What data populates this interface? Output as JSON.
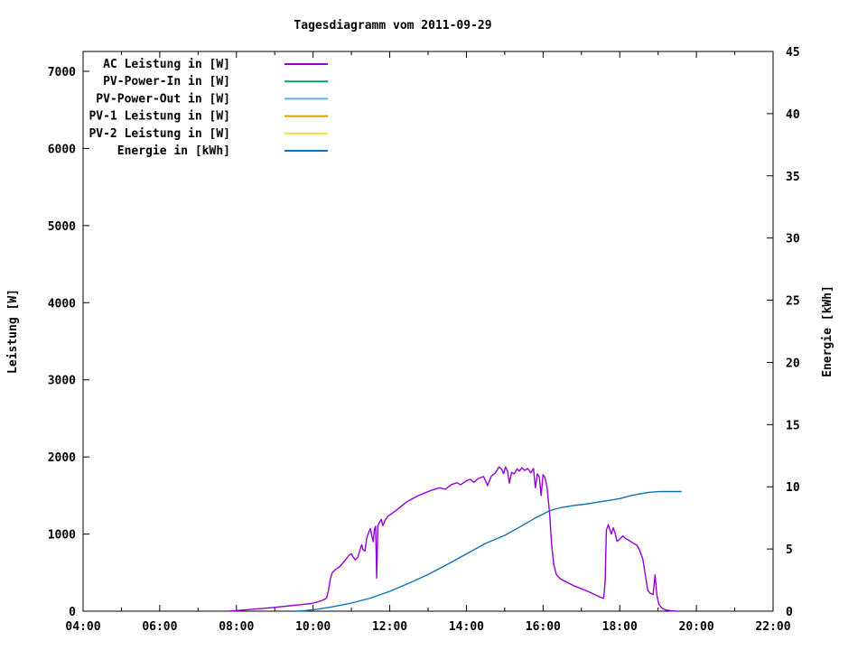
{
  "chart_data": {
    "type": "line",
    "title": "Tagesdiagramm vom 2011-09-29",
    "background": "#ffffff",
    "text_color": "#000000",
    "grid": false,
    "legend_position": "top-left-inside",
    "x_axis": {
      "label": "",
      "range_hours": [
        4,
        22
      ],
      "major_tick_labels": [
        "04:00",
        "06:00",
        "08:00",
        "10:00",
        "12:00",
        "14:00",
        "16:00",
        "18:00",
        "20:00",
        "22:00"
      ],
      "major_tick_hours": [
        4,
        6,
        8,
        10,
        12,
        14,
        16,
        18,
        20,
        22
      ],
      "minor_tick_hours": [
        5,
        7,
        9,
        11,
        13,
        15,
        17,
        19,
        21
      ]
    },
    "y_left": {
      "label": "Leistung [W]",
      "tick_values": [
        0,
        1000,
        2000,
        3000,
        4000,
        5000,
        6000,
        7000
      ],
      "tick_labels": [
        "0",
        "1000",
        "2000",
        "3000",
        "4000",
        "5000",
        "6000",
        "7000"
      ],
      "units_per_px": "1000 W per 85.4 px",
      "range_shown": [
        0,
        7260
      ]
    },
    "y_right": {
      "label": "Energie [kWh]",
      "tick_values": [
        0,
        5,
        10,
        15,
        20,
        25,
        30,
        35,
        40,
        45
      ],
      "tick_labels": [
        "0",
        "5",
        "10",
        "15",
        "20",
        "25",
        "30",
        "35",
        "40",
        "45"
      ],
      "range_shown": [
        0,
        45
      ]
    },
    "legend": [
      {
        "label": "AC Leistung in [W]",
        "color": "#9400d3",
        "series": "ac-leistung"
      },
      {
        "label": "PV-Power-In in [W]",
        "color": "#009e73",
        "series": "pv-power-in"
      },
      {
        "label": "PV-Power-Out in [W]",
        "color": "#56b4e9",
        "series": "pv-power-out"
      },
      {
        "label": "PV-1 Leistung in [W]",
        "color": "#d8a000",
        "series": "pv-1-leistung"
      },
      {
        "label": "PV-2 Leistung in [W]",
        "color": "#f0e442",
        "series": "pv-2-leistung"
      },
      {
        "label": "Energie in [kWh]",
        "color": "#0e72b5",
        "series": "energie"
      }
    ],
    "series": [
      {
        "slug": "ac-leistung",
        "name": "AC Leistung in [W]",
        "axis": "left",
        "color": "#9400d3",
        "points": [
          [
            7.78,
            0
          ],
          [
            8.0,
            8
          ],
          [
            8.2,
            15
          ],
          [
            8.5,
            28
          ],
          [
            8.8,
            40
          ],
          [
            9.1,
            55
          ],
          [
            9.4,
            70
          ],
          [
            9.7,
            85
          ],
          [
            9.95,
            100
          ],
          [
            10.1,
            118
          ],
          [
            10.25,
            142
          ],
          [
            10.35,
            168
          ],
          [
            10.4,
            260
          ],
          [
            10.45,
            420
          ],
          [
            10.5,
            500
          ],
          [
            10.6,
            545
          ],
          [
            10.7,
            580
          ],
          [
            10.8,
            640
          ],
          [
            10.9,
            700
          ],
          [
            10.95,
            730
          ],
          [
            11.0,
            745
          ],
          [
            11.05,
            700
          ],
          [
            11.1,
            665
          ],
          [
            11.17,
            700
          ],
          [
            11.22,
            790
          ],
          [
            11.27,
            860
          ],
          [
            11.3,
            800
          ],
          [
            11.35,
            780
          ],
          [
            11.4,
            950
          ],
          [
            11.45,
            1020
          ],
          [
            11.5,
            1070
          ],
          [
            11.53,
            980
          ],
          [
            11.57,
            900
          ],
          [
            11.6,
            1060
          ],
          [
            11.63,
            1100
          ],
          [
            11.66,
            430
          ],
          [
            11.69,
            1110
          ],
          [
            11.73,
            1150
          ],
          [
            11.78,
            1190
          ],
          [
            11.82,
            1110
          ],
          [
            11.87,
            1170
          ],
          [
            11.95,
            1230
          ],
          [
            12.05,
            1265
          ],
          [
            12.15,
            1300
          ],
          [
            12.3,
            1360
          ],
          [
            12.45,
            1420
          ],
          [
            12.6,
            1460
          ],
          [
            12.75,
            1500
          ],
          [
            12.9,
            1530
          ],
          [
            13.1,
            1570
          ],
          [
            13.3,
            1600
          ],
          [
            13.45,
            1580
          ],
          [
            13.6,
            1640
          ],
          [
            13.75,
            1665
          ],
          [
            13.85,
            1640
          ],
          [
            14.0,
            1690
          ],
          [
            14.1,
            1710
          ],
          [
            14.2,
            1670
          ],
          [
            14.3,
            1720
          ],
          [
            14.45,
            1745
          ],
          [
            14.55,
            1630
          ],
          [
            14.65,
            1750
          ],
          [
            14.75,
            1790
          ],
          [
            14.85,
            1870
          ],
          [
            14.92,
            1840
          ],
          [
            14.97,
            1780
          ],
          [
            15.02,
            1870
          ],
          [
            15.07,
            1820
          ],
          [
            15.12,
            1660
          ],
          [
            15.18,
            1800
          ],
          [
            15.25,
            1780
          ],
          [
            15.32,
            1845
          ],
          [
            15.38,
            1815
          ],
          [
            15.45,
            1860
          ],
          [
            15.52,
            1825
          ],
          [
            15.6,
            1850
          ],
          [
            15.68,
            1795
          ],
          [
            15.75,
            1850
          ],
          [
            15.8,
            1600
          ],
          [
            15.85,
            1780
          ],
          [
            15.9,
            1745
          ],
          [
            15.95,
            1500
          ],
          [
            16.0,
            1770
          ],
          [
            16.05,
            1730
          ],
          [
            16.1,
            1620
          ],
          [
            16.17,
            1280
          ],
          [
            16.22,
            880
          ],
          [
            16.28,
            600
          ],
          [
            16.35,
            470
          ],
          [
            16.45,
            420
          ],
          [
            16.6,
            380
          ],
          [
            16.8,
            330
          ],
          [
            17.0,
            290
          ],
          [
            17.2,
            250
          ],
          [
            17.35,
            215
          ],
          [
            17.5,
            180
          ],
          [
            17.58,
            165
          ],
          [
            17.62,
            400
          ],
          [
            17.65,
            1050
          ],
          [
            17.7,
            1120
          ],
          [
            17.74,
            1060
          ],
          [
            17.78,
            1000
          ],
          [
            17.83,
            1080
          ],
          [
            17.88,
            1010
          ],
          [
            17.93,
            905
          ],
          [
            18.0,
            935
          ],
          [
            18.08,
            975
          ],
          [
            18.15,
            945
          ],
          [
            18.25,
            915
          ],
          [
            18.35,
            880
          ],
          [
            18.45,
            855
          ],
          [
            18.52,
            790
          ],
          [
            18.6,
            680
          ],
          [
            18.68,
            430
          ],
          [
            18.73,
            270
          ],
          [
            18.8,
            230
          ],
          [
            18.87,
            215
          ],
          [
            18.92,
            470
          ],
          [
            18.97,
            200
          ],
          [
            19.02,
            90
          ],
          [
            19.1,
            40
          ],
          [
            19.2,
            15
          ],
          [
            19.35,
            5
          ],
          [
            19.5,
            0
          ]
        ]
      },
      {
        "slug": "pv-power-in",
        "name": "PV-Power-In in [W]",
        "axis": "left",
        "color": "#009e73",
        "points": []
      },
      {
        "slug": "pv-power-out",
        "name": "PV-Power-Out in [W]",
        "axis": "left",
        "color": "#56b4e9",
        "points": []
      },
      {
        "slug": "pv-1-leistung",
        "name": "PV-1 Leistung in [W]",
        "axis": "left",
        "color": "#d8a000",
        "points": []
      },
      {
        "slug": "pv-2-leistung",
        "name": "PV-2 Leistung in [W]",
        "axis": "left",
        "color": "#f0e442",
        "points": []
      },
      {
        "slug": "energie",
        "name": "Energie in [kWh]",
        "axis": "right",
        "color": "#0e72b5",
        "points": [
          [
            9.55,
            0
          ],
          [
            9.8,
            0.05
          ],
          [
            10.1,
            0.15
          ],
          [
            10.5,
            0.35
          ],
          [
            11.0,
            0.65
          ],
          [
            11.5,
            1.05
          ],
          [
            12.0,
            1.6
          ],
          [
            12.5,
            2.25
          ],
          [
            13.0,
            2.95
          ],
          [
            13.5,
            3.75
          ],
          [
            14.0,
            4.6
          ],
          [
            14.5,
            5.45
          ],
          [
            15.0,
            6.1
          ],
          [
            15.5,
            6.95
          ],
          [
            15.8,
            7.5
          ],
          [
            16.0,
            7.8
          ],
          [
            16.15,
            8.05
          ],
          [
            16.3,
            8.2
          ],
          [
            16.5,
            8.35
          ],
          [
            16.8,
            8.5
          ],
          [
            17.1,
            8.6
          ],
          [
            17.4,
            8.75
          ],
          [
            17.7,
            8.9
          ],
          [
            18.0,
            9.05
          ],
          [
            18.3,
            9.3
          ],
          [
            18.55,
            9.45
          ],
          [
            18.75,
            9.55
          ],
          [
            18.95,
            9.6
          ],
          [
            19.1,
            9.62
          ],
          [
            19.6,
            9.62
          ]
        ]
      }
    ]
  }
}
